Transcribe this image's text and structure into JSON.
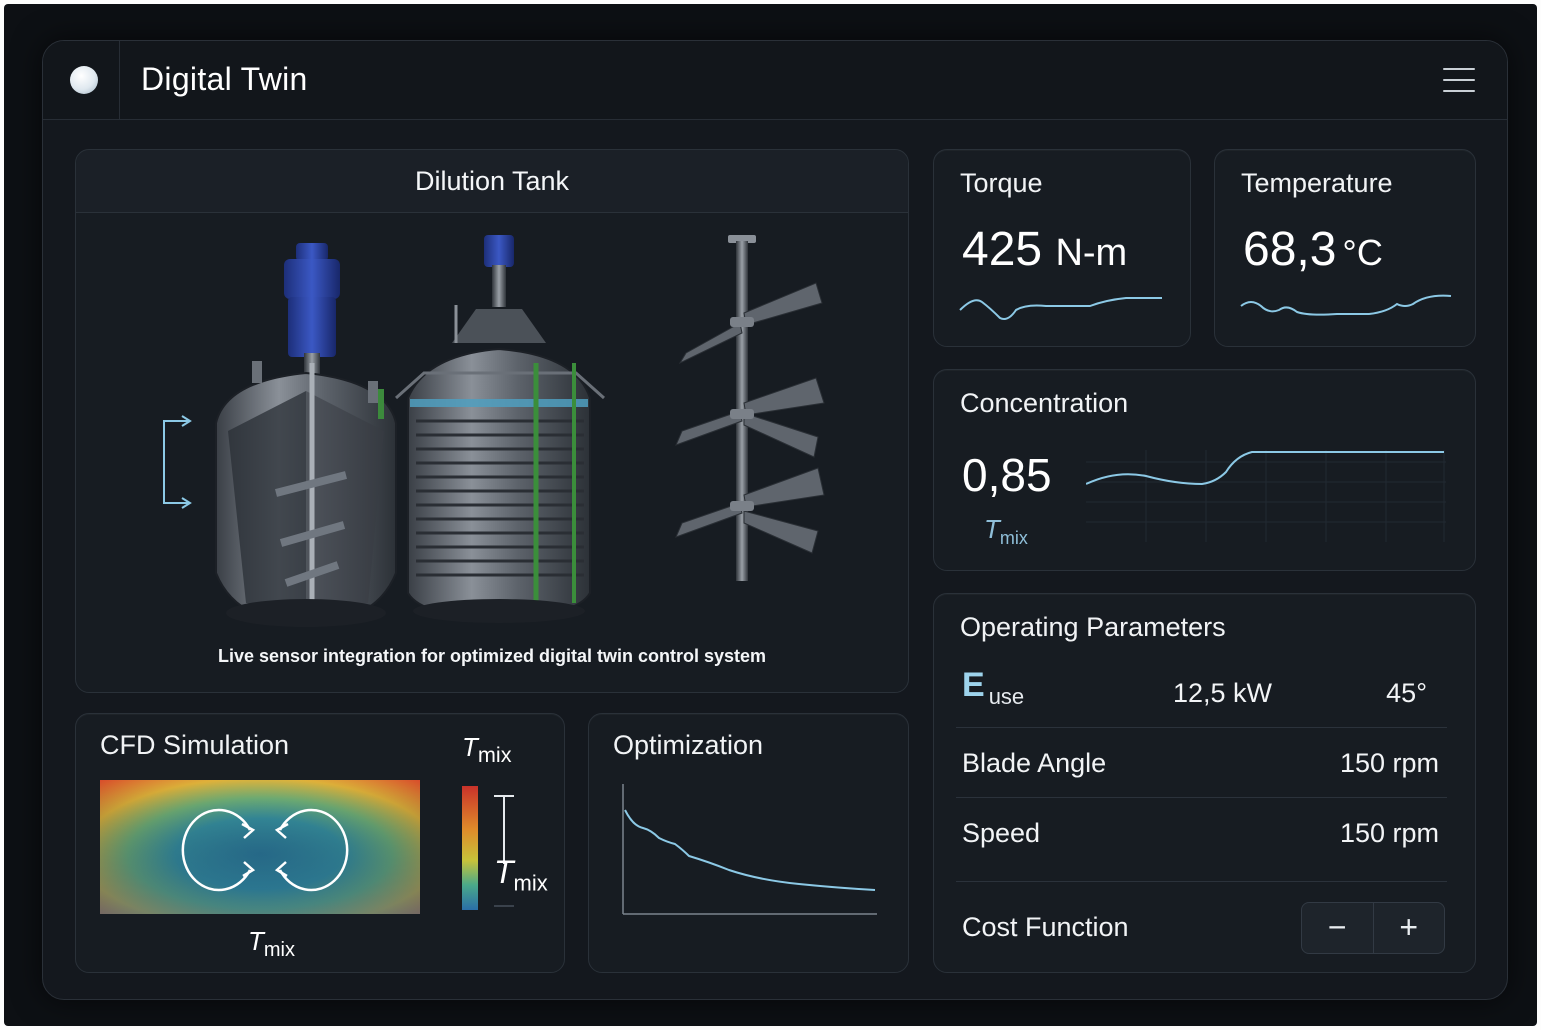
{
  "app": {
    "title": "Digital Twin"
  },
  "tank": {
    "title": "Dilution Tank",
    "caption": "Live sensor integration for optimized digital twin control system"
  },
  "torque": {
    "label": "Torque",
    "value": "425",
    "unit": "N-m"
  },
  "temperature": {
    "label": "Temperature",
    "value": "68,3",
    "unit": "°C"
  },
  "concentration": {
    "label": "Concentration",
    "value": "0,85",
    "symbol": "T",
    "symbol_sub": "mix"
  },
  "params": {
    "title": "Operating Parameters",
    "euse": {
      "symbol": "E",
      "sub": "use",
      "value1": "12,5 kW",
      "value2": "45°"
    },
    "blade_angle": {
      "label": "Blade Angle",
      "value": "150 rpm"
    },
    "speed": {
      "label": "Speed",
      "value": "150 rpm"
    },
    "cost_function": {
      "label": "Cost Function",
      "minus": "−",
      "plus": "+"
    }
  },
  "cfd": {
    "title": "CFD Simulation",
    "t": "T",
    "mix": "mix"
  },
  "optimization": {
    "title": "Optimization"
  },
  "colors": {
    "accent": "#8cc9e6",
    "background": "#14181e",
    "card": "#171c22",
    "motor_blue": "#2b45a6"
  },
  "icons": {
    "status": "status-dot-icon",
    "menu": "hamburger-menu-icon"
  }
}
